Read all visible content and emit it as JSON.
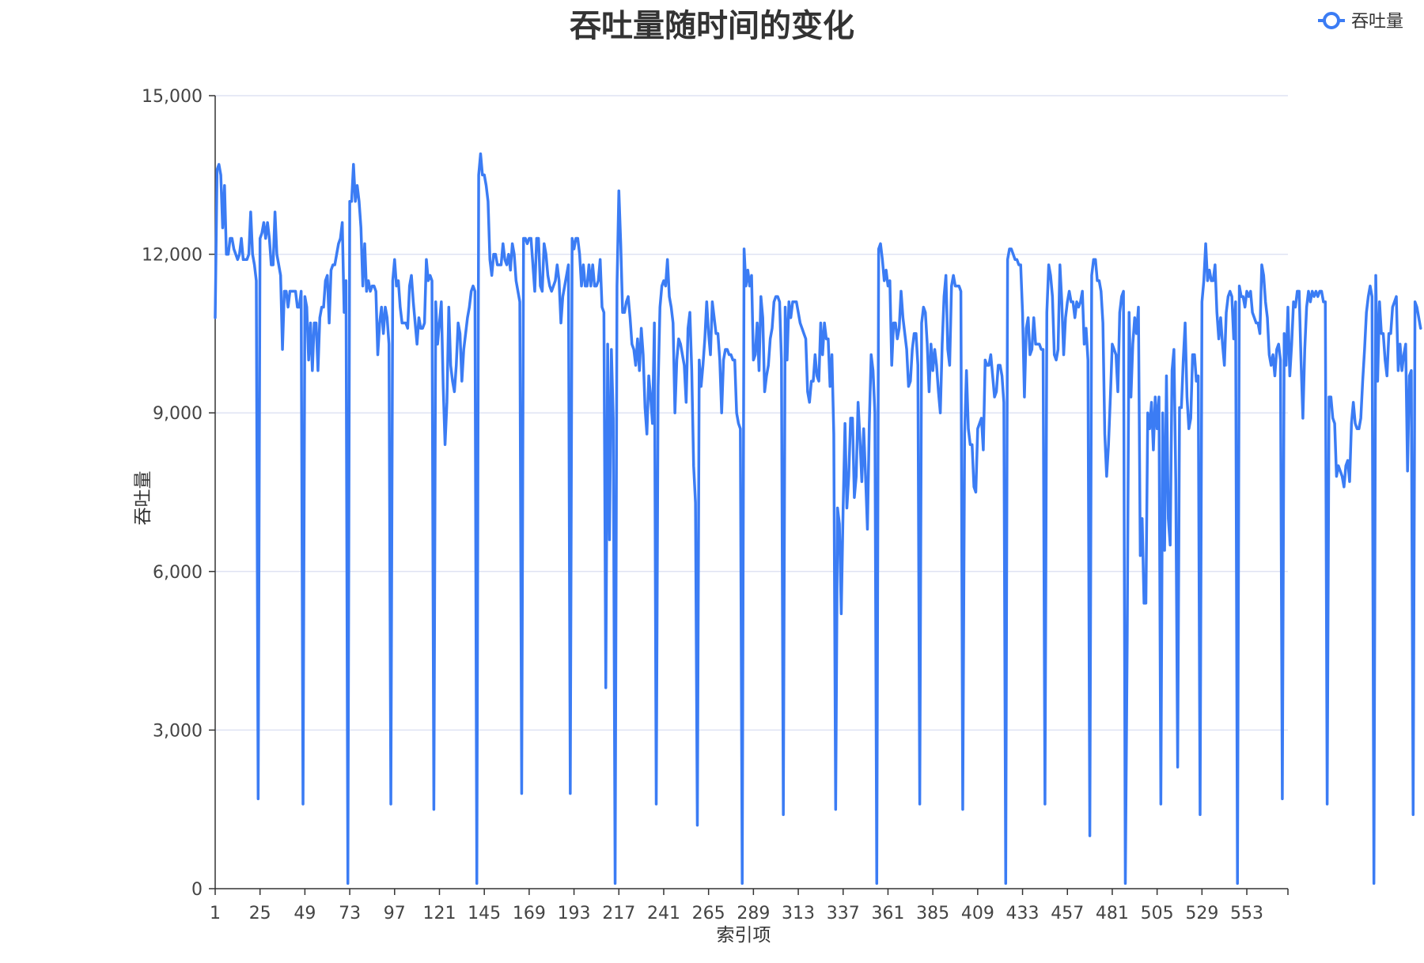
{
  "chart_data": {
    "type": "line",
    "title": "吞吐量随时间的变化",
    "xlabel": "索引项",
    "ylabel": "吞吐量",
    "ylim": [
      0,
      15000
    ],
    "yticks": [
      "0",
      "3,000",
      "6,000",
      "9,000",
      "12,000",
      "15,000"
    ],
    "ytick_values": [
      0,
      3000,
      6000,
      9000,
      12000,
      15000
    ],
    "xlim": [
      1,
      575
    ],
    "xticks": [
      1,
      25,
      49,
      73,
      97,
      121,
      145,
      169,
      193,
      217,
      241,
      265,
      289,
      313,
      337,
      361,
      385,
      409,
      433,
      457,
      481,
      505,
      529,
      553
    ],
    "grid": true,
    "legend_position": "top-right",
    "color": "#3b7cf4",
    "series": [
      {
        "name": "吞吐量",
        "x_start": 1,
        "values": [
          10800,
          13600,
          13700,
          13500,
          12500,
          13300,
          12000,
          12000,
          12300,
          12300,
          12100,
          12000,
          11900,
          12000,
          12300,
          11900,
          11900,
          11900,
          12000,
          12800,
          12000,
          11800,
          11500,
          1700,
          12300,
          12400,
          12600,
          12300,
          12600,
          12300,
          11800,
          11800,
          12800,
          12000,
          11800,
          11600,
          10200,
          11300,
          11300,
          11000,
          11300,
          11300,
          11300,
          11300,
          11000,
          11000,
          11300,
          1600,
          11200,
          11000,
          10000,
          10700,
          9800,
          10700,
          10700,
          9800,
          10800,
          11000,
          11000,
          11500,
          11600,
          10700,
          11700,
          11800,
          11800,
          12000,
          12200,
          12300,
          12600,
          10900,
          11500,
          100,
          13000,
          13000,
          13700,
          13000,
          13300,
          13000,
          12500,
          11400,
          12200,
          11300,
          11500,
          11300,
          11400,
          11400,
          11300,
          10100,
          10700,
          11000,
          10500,
          11000,
          10800,
          10300,
          1600,
          11500,
          11900,
          11400,
          11500,
          11000,
          10700,
          10700,
          10700,
          10600,
          11400,
          11600,
          11100,
          10700,
          10300,
          10800,
          10600,
          10600,
          10700,
          11900,
          11500,
          11600,
          11500,
          1500,
          11100,
          10300,
          10700,
          11100,
          9500,
          8400,
          9200,
          11000,
          9900,
          9600,
          9400,
          9900,
          10700,
          10500,
          9600,
          10200,
          10500,
          10800,
          11000,
          11300,
          11400,
          11300,
          100,
          13500,
          13900,
          13500,
          13500,
          13300,
          13000,
          11900,
          11600,
          12000,
          12000,
          11800,
          11800,
          11800,
          12200,
          11900,
          11800,
          12000,
          11700,
          12200,
          12000,
          11500,
          11300,
          11100,
          1800,
          12300,
          12300,
          12200,
          12300,
          12300,
          11800,
          11300,
          12300,
          12300,
          11400,
          11300,
          12200,
          12000,
          11600,
          11400,
          11300,
          11400,
          11500,
          11800,
          11500,
          10700,
          11200,
          11400,
          11600,
          11800,
          1800,
          12300,
          12100,
          12300,
          12300,
          12000,
          11400,
          11800,
          11400,
          11400,
          11800,
          11400,
          11800,
          11400,
          11400,
          11500,
          11900,
          11000,
          10900,
          3800,
          10300,
          6600,
          10200,
          8900,
          100,
          11400,
          13200,
          12200,
          10900,
          10900,
          11100,
          11200,
          10800,
          10300,
          10200,
          9900,
          10400,
          9800,
          10600,
          10100,
          9100,
          8600,
          9700,
          9300,
          8800,
          10700,
          1600,
          9500,
          11000,
          11400,
          11500,
          11400,
          11900,
          11200,
          11000,
          10700,
          9000,
          10000,
          10400,
          10300,
          10100,
          9900,
          9200,
          10600,
          10900,
          9800,
          8000,
          7300,
          1200,
          10000,
          9500,
          9900,
          10400,
          11100,
          10500,
          10100,
          11100,
          10800,
          10500,
          10500,
          10000,
          9000,
          10000,
          10200,
          10200,
          10100,
          10100,
          10000,
          10000,
          9000,
          8800,
          8700,
          100,
          12100,
          11400,
          11700,
          11400,
          11600,
          10000,
          10100,
          10700,
          9800,
          11200,
          10800,
          9400,
          9700,
          9900,
          10400,
          10600,
          11100,
          11200,
          11200,
          11100,
          10000,
          1400,
          11000,
          10000,
          11100,
          10800,
          11100,
          11100,
          11100,
          10900,
          10700,
          10600,
          10500,
          10400,
          9400,
          9200,
          9600,
          9600,
          10100,
          9700,
          9600,
          10700,
          10100,
          10700,
          10400,
          10400,
          9500,
          10100,
          8600,
          1500,
          7200,
          6900,
          5200,
          7200,
          8800,
          7200,
          7800,
          8900,
          8900,
          7400,
          7800,
          9200,
          8500,
          7700,
          8700,
          7800,
          6800,
          8800,
          10100,
          9800,
          9000,
          100,
          12100,
          12200,
          11900,
          11500,
          11700,
          11400,
          11500,
          9900,
          10700,
          10700,
          10400,
          10600,
          11300,
          10800,
          10500,
          10200,
          9500,
          9600,
          10200,
          10500,
          10500,
          9900,
          1600,
          10700,
          11000,
          10900,
          10300,
          9400,
          10300,
          9800,
          10200,
          9900,
          9400,
          9000,
          10300,
          11200,
          11600,
          10200,
          9900,
          11400,
          11600,
          11400,
          11400,
          11400,
          11300,
          1500,
          8600,
          9800,
          8700,
          8400,
          8400,
          7600,
          7500,
          8700,
          8800,
          8900,
          8300,
          10000,
          9900,
          9900,
          10100,
          9700,
          9300,
          9400,
          9900,
          9900,
          9700,
          9200,
          100,
          11900,
          12100,
          12100,
          12000,
          11900,
          11900,
          11800,
          11800,
          10900,
          9300,
          10600,
          10800,
          10100,
          10200,
          10800,
          10300,
          10300,
          10300,
          10200,
          10200,
          1600,
          10900,
          11800,
          11600,
          11200,
          10100,
          10000,
          10200,
          11800,
          11100,
          10100,
          10800,
          11100,
          11300,
          11100,
          11100,
          10800,
          11100,
          11000,
          11100,
          11300,
          10300,
          10600,
          10000,
          1000,
          11600,
          11900,
          11900,
          11500,
          11500,
          11300,
          10700,
          8600,
          7800,
          8400,
          9300,
          10300,
          10200,
          10100,
          9400,
          10900,
          11200,
          11300,
          100,
          4700,
          10900,
          9300,
          10300,
          10800,
          10500,
          11000,
          6300,
          7000,
          5400,
          5400,
          9000,
          8700,
          9200,
          8300,
          9300,
          8700,
          9300,
          1600,
          9000,
          6400,
          9700,
          7000,
          6500,
          9800,
          10200,
          7700,
          2300,
          9100,
          9100,
          10000,
          10700,
          9300,
          8700,
          8900,
          10100,
          10100,
          9600,
          9700,
          1400,
          11100,
          11500,
          12200,
          11500,
          11700,
          11500,
          11500,
          11800,
          10900,
          10400,
          10800,
          10300,
          9900,
          10900,
          11200,
          11300,
          11200,
          10400,
          11100,
          100,
          11400,
          11200,
          11200,
          11000,
          11300,
          11200,
          11300,
          10900,
          10800,
          10700,
          10700,
          10500,
          11800,
          11600,
          11100,
          10800,
          10100,
          9900,
          10100,
          9700,
          10200,
          10300,
          10000,
          1700,
          10500,
          9900,
          11000,
          9700,
          10300,
          11100,
          11000,
          11300,
          11300,
          10000,
          8900,
          10200,
          11000,
          11300,
          11100,
          11300,
          11200,
          11300,
          11200,
          11300,
          11300,
          11100,
          11100,
          1600,
          9300,
          9300,
          8900,
          8800,
          7800,
          8000,
          7900,
          7800,
          7600,
          8000,
          8100,
          7700,
          8800,
          9200,
          8800,
          8700,
          8700,
          8900,
          9600,
          10200,
          10900,
          11200,
          11400,
          11200,
          100,
          11600,
          9600,
          11100,
          10500,
          10500,
          10000,
          9700,
          10500,
          10500,
          11000,
          11100,
          11200,
          9800,
          10300,
          9800,
          10100,
          10300,
          7900,
          9700,
          9800,
          1400,
          11100,
          11000,
          10800,
          10600
        ]
      }
    ]
  }
}
